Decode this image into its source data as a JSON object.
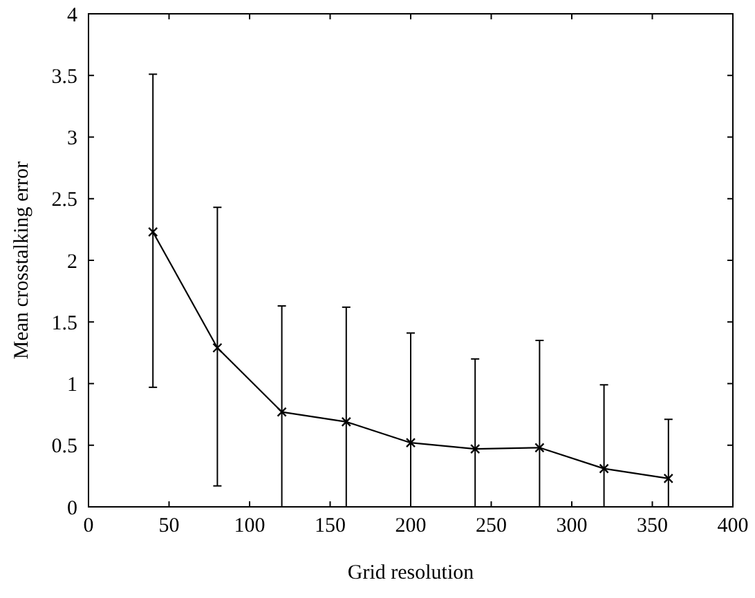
{
  "chart_data": {
    "type": "line",
    "xlabel": "Grid resolution",
    "ylabel": "Mean crosstalking error",
    "x": [
      40,
      80,
      120,
      160,
      200,
      240,
      280,
      320,
      360
    ],
    "series": [
      {
        "color": "#000000",
        "values": [
          2.23,
          1.29,
          0.77,
          0.69,
          0.52,
          0.47,
          0.48,
          0.31,
          0.23
        ],
        "errors": [
          [
            0.97,
            3.51
          ],
          [
            0.17,
            2.43
          ],
          [
            0,
            1.63
          ],
          [
            0,
            1.62
          ],
          [
            0,
            1.41
          ],
          [
            0,
            1.2
          ],
          [
            0,
            1.35
          ],
          [
            0,
            0.99
          ],
          [
            0,
            0.71
          ]
        ]
      }
    ],
    "xlim": [
      0,
      400
    ],
    "xticks": [
      0,
      50,
      100,
      150,
      200,
      250,
      300,
      350,
      400
    ],
    "ylim": [
      0,
      4
    ],
    "yticks": [
      0,
      0.5,
      1,
      1.5,
      2,
      2.5,
      3,
      3.5,
      4
    ],
    "marker": "cross",
    "line_style": "solid"
  }
}
